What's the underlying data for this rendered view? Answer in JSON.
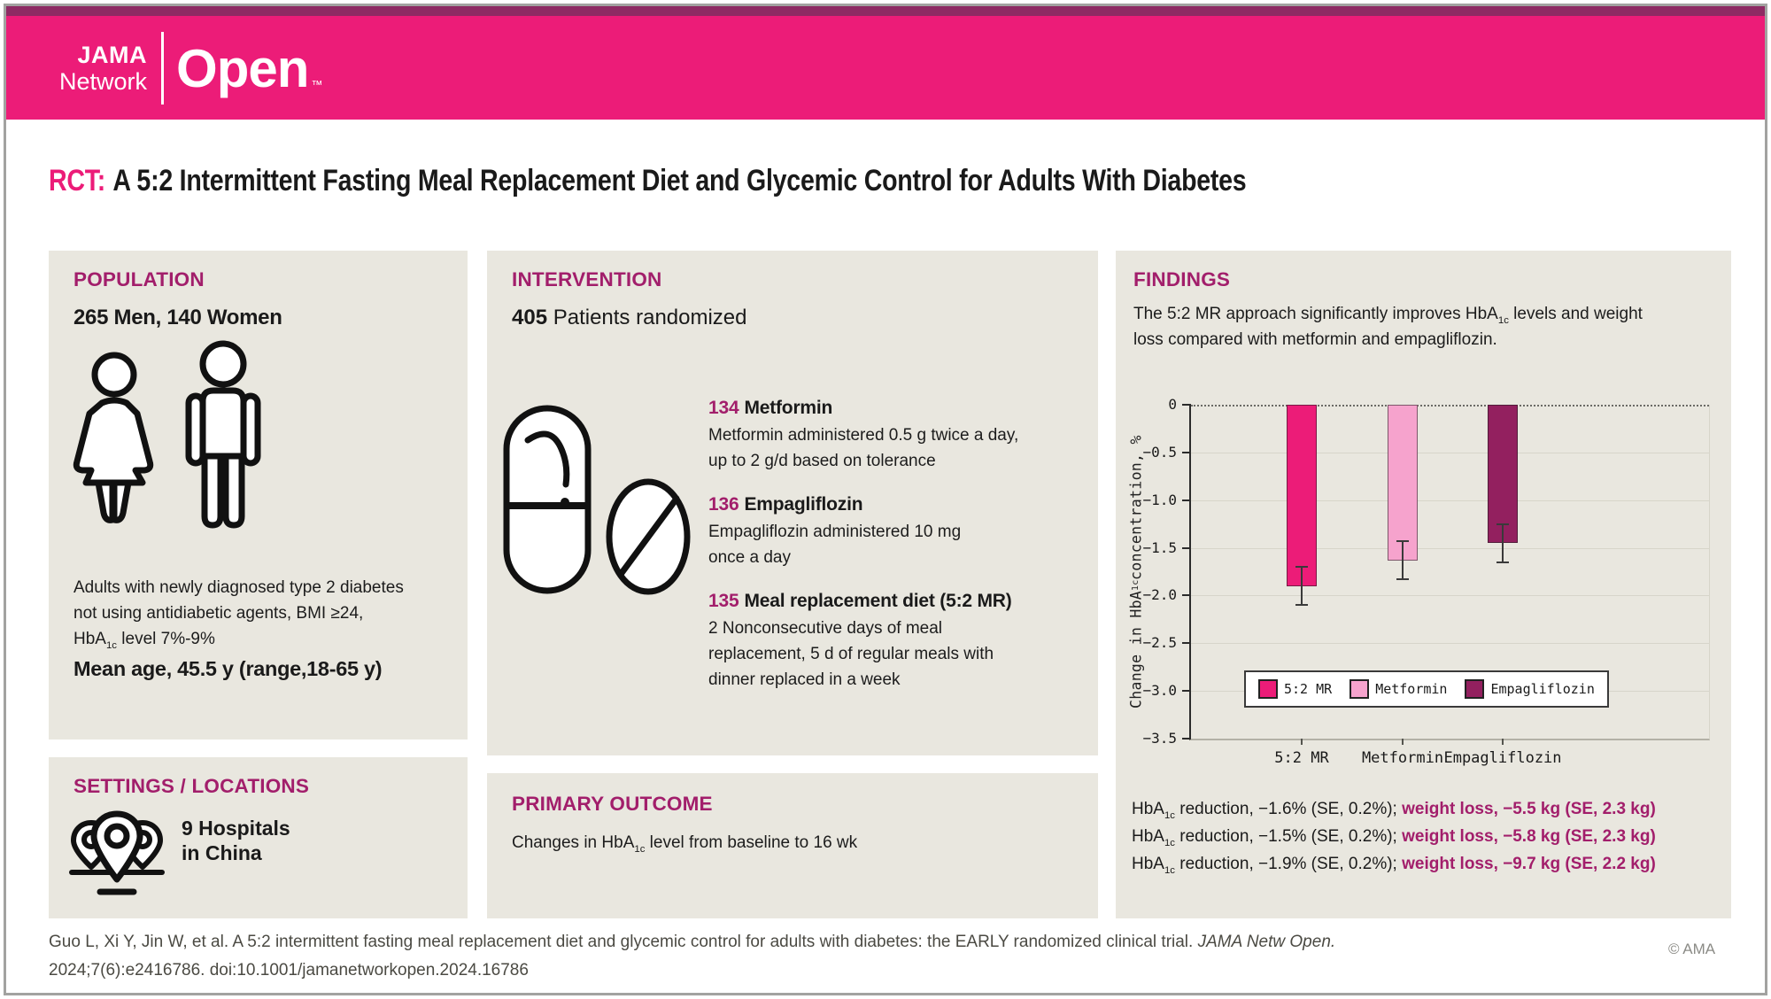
{
  "colors": {
    "pink": "#EC1C78",
    "dark_pink": "#A21E6B",
    "plum": "#93205F",
    "light_pink": "#F6A3CD",
    "panel_bg": "#E9E7DF",
    "top_strip": "#8E2A63"
  },
  "header": {
    "brand_line1": "JAMA",
    "brand_line2": "Network",
    "brand_line3": "Open",
    "trademark": "™"
  },
  "title": {
    "prefix": "RCT:",
    "text": "A 5:2 Intermittent Fasting Meal Replacement Diet and Glycemic Control for Adults With Diabetes"
  },
  "population": {
    "heading": "POPULATION",
    "stat": "265 Men, 140 Women",
    "desc": [
      {
        "t": "Adults with newly diagnosed type 2 diabetes"
      },
      {
        "br": true
      },
      {
        "t": "not using antidiabetic agents, BMI ≥24,"
      },
      {
        "br": true
      },
      {
        "t": "HbA"
      },
      {
        "t": "1c",
        "sub": true
      },
      {
        "t": " level 7%-9%"
      }
    ],
    "age": "Mean age, 45.5 y (range,18-65 y)"
  },
  "settings": {
    "heading": "SETTINGS / LOCATIONS",
    "line1": "9 Hospitals",
    "line2": "in China"
  },
  "intervention": {
    "heading": "INTERVENTION",
    "n": "405",
    "n_label": " Patients randomized",
    "groups": [
      {
        "n": "134",
        "name": "Metformin",
        "desc": [
          {
            "t": "Metformin administered 0.5 g twice a day,"
          },
          {
            "br": true
          },
          {
            "t": "up to 2 g/d based on tolerance"
          }
        ]
      },
      {
        "n": "136",
        "name": "Empagliflozin",
        "desc": [
          {
            "t": "Empagliflozin administered 10 mg"
          },
          {
            "br": true
          },
          {
            "t": "once a day"
          }
        ]
      },
      {
        "n": "135",
        "name": "Meal replacement diet (5:2 MR)",
        "desc": [
          {
            "t": "2 Nonconsecutive days of meal"
          },
          {
            "br": true
          },
          {
            "t": "replacement, 5 d of regular meals with"
          },
          {
            "br": true
          },
          {
            "t": "dinner replaced in a week"
          }
        ]
      }
    ]
  },
  "primary_outcome": {
    "heading": "PRIMARY OUTCOME",
    "text": [
      {
        "t": "Changes in HbA"
      },
      {
        "t": "1c",
        "sub": true
      },
      {
        "t": " level from baseline to 16 wk"
      }
    ]
  },
  "findings": {
    "heading": "FINDINGS",
    "summary": [
      {
        "t": "The 5:2 MR approach significantly improves HbA"
      },
      {
        "t": "1c",
        "sub": true
      },
      {
        "t": " levels and weight"
      },
      {
        "br": true
      },
      {
        "t": "loss compared with metformin and empagliflozin."
      }
    ],
    "results": [
      [
        {
          "t": "HbA"
        },
        {
          "t": "1c",
          "sub": true
        },
        {
          "t": " reduction, −1.6% (SE, 0.2%); "
        },
        {
          "t": "weight loss, −5.5 kg (SE, 2.3 kg)",
          "accent": true
        }
      ],
      [
        {
          "t": "HbA"
        },
        {
          "t": "1c",
          "sub": true
        },
        {
          "t": " reduction, −1.5% (SE, 0.2%); "
        },
        {
          "t": "weight loss, −5.8 kg (SE, 2.3 kg)",
          "accent": true
        }
      ],
      [
        {
          "t": "HbA"
        },
        {
          "t": "1c",
          "sub": true
        },
        {
          "t": " reduction, −1.9% (SE, 0.2%); "
        },
        {
          "t": "weight loss, −9.7 kg (SE, 2.2 kg)",
          "accent": true
        }
      ]
    ]
  },
  "chart_data": {
    "type": "bar",
    "categories": [
      "5:2 MR",
      "Metformin",
      "Empagliflozin"
    ],
    "values": [
      -1.9,
      -1.63,
      -1.45
    ],
    "se": [
      0.2,
      0.2,
      0.2
    ],
    "colors": [
      "#EC1C78",
      "#F6A3CD",
      "#93205F"
    ],
    "title": "",
    "xlabel": "",
    "ylabel": "Change in HbA1c concentration, %",
    "ylabel_parts": [
      {
        "t": "Change in HbA"
      },
      {
        "t": "1c",
        "sub": true
      },
      {
        "t": " concentration, %"
      }
    ],
    "ylim": [
      0,
      -3.5
    ],
    "yticks": [
      0,
      -0.5,
      -1.0,
      -1.5,
      -2.0,
      -2.5,
      -3.0,
      -3.5
    ],
    "ytick_labels": [
      "0",
      "−0.5",
      "−1.0",
      "−1.5",
      "−2.0",
      "−2.5",
      "−3.0",
      "−3.5"
    ],
    "grid": true,
    "zero_line": "dotted",
    "legend": [
      "5:2 MR",
      "Metformin",
      "Empagliflozin"
    ],
    "legend_position": "inside-bottom-left"
  },
  "footer": {
    "citation": [
      {
        "t": "Guo L, Xi Y, Jin W, et al. A 5:2 intermittent fasting meal replacement diet and glycemic control for adults with diabetes: the EARLY randomized clinical trial. "
      },
      {
        "t": "JAMA Netw Open.",
        "i": true
      },
      {
        "br": true
      },
      {
        "t": "2024;7(6):e2416786. doi:10.1001/jamanetworkopen.2024.16786"
      }
    ],
    "copyright": "© AMA"
  }
}
